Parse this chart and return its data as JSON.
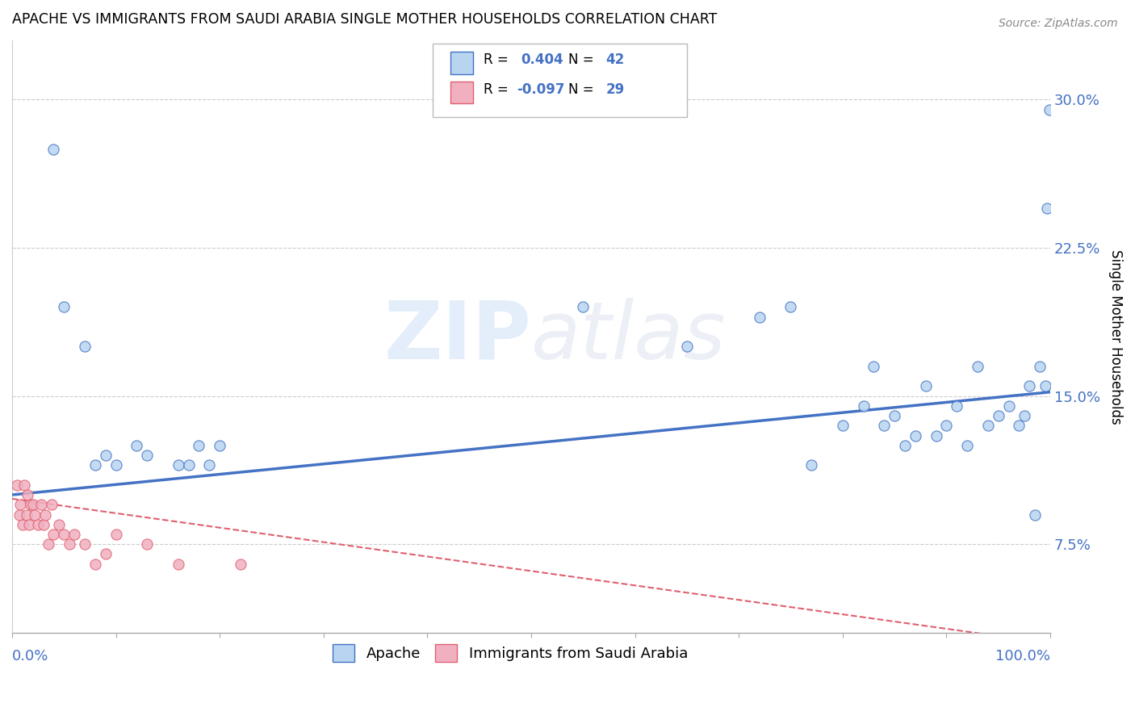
{
  "title": "APACHE VS IMMIGRANTS FROM SAUDI ARABIA SINGLE MOTHER HOUSEHOLDS CORRELATION CHART",
  "source": "Source: ZipAtlas.com",
  "ylabel": "Single Mother Households",
  "yticks": [
    0.075,
    0.15,
    0.225,
    0.3
  ],
  "ytick_labels": [
    "7.5%",
    "15.0%",
    "22.5%",
    "30.0%"
  ],
  "xlim": [
    0,
    1
  ],
  "ylim": [
    0.03,
    0.33
  ],
  "legend_r1": "R =  0.404",
  "legend_n1": "N = 42",
  "legend_r2": "R = -0.097",
  "legend_n2": "N = 29",
  "legend_label1": "Apache",
  "legend_label2": "Immigrants from Saudi Arabia",
  "color_blue": "#b8d4f0",
  "color_pink": "#f0b0c0",
  "color_line_blue": "#4472c4",
  "color_line_pink": "#e06070",
  "watermark_zip": "ZIP",
  "watermark_atlas": "atlas",
  "apache_x": [
    0.04,
    0.05,
    0.07,
    0.08,
    0.09,
    0.1,
    0.12,
    0.13,
    0.16,
    0.17,
    0.18,
    0.19,
    0.2,
    0.55,
    0.65,
    0.72,
    0.75,
    0.77,
    0.8,
    0.82,
    0.83,
    0.84,
    0.85,
    0.86,
    0.87,
    0.88,
    0.89,
    0.9,
    0.91,
    0.92,
    0.93,
    0.94,
    0.95,
    0.96,
    0.97,
    0.975,
    0.98,
    0.985,
    0.99,
    0.995,
    0.997,
    0.999
  ],
  "apache_y": [
    0.275,
    0.195,
    0.175,
    0.115,
    0.12,
    0.115,
    0.125,
    0.12,
    0.115,
    0.115,
    0.125,
    0.115,
    0.125,
    0.195,
    0.175,
    0.19,
    0.195,
    0.115,
    0.135,
    0.145,
    0.165,
    0.135,
    0.14,
    0.125,
    0.13,
    0.155,
    0.13,
    0.135,
    0.145,
    0.125,
    0.165,
    0.135,
    0.14,
    0.145,
    0.135,
    0.14,
    0.155,
    0.09,
    0.165,
    0.155,
    0.245,
    0.295
  ],
  "saudi_x": [
    0.005,
    0.007,
    0.008,
    0.01,
    0.012,
    0.014,
    0.015,
    0.016,
    0.018,
    0.02,
    0.022,
    0.025,
    0.028,
    0.03,
    0.032,
    0.035,
    0.038,
    0.04,
    0.045,
    0.05,
    0.055,
    0.06,
    0.07,
    0.08,
    0.09,
    0.1,
    0.13,
    0.16,
    0.22
  ],
  "saudi_y": [
    0.105,
    0.09,
    0.095,
    0.085,
    0.105,
    0.09,
    0.1,
    0.085,
    0.095,
    0.095,
    0.09,
    0.085,
    0.095,
    0.085,
    0.09,
    0.075,
    0.095,
    0.08,
    0.085,
    0.08,
    0.075,
    0.08,
    0.075,
    0.065,
    0.07,
    0.08,
    0.075,
    0.065,
    0.065
  ],
  "blue_line_x": [
    0,
    1.0
  ],
  "blue_line_y": [
    0.1,
    0.152
  ],
  "pink_line_x": [
    0,
    0.52
  ],
  "pink_line_y_start": 0.098,
  "pink_line_y_end": 0.06
}
